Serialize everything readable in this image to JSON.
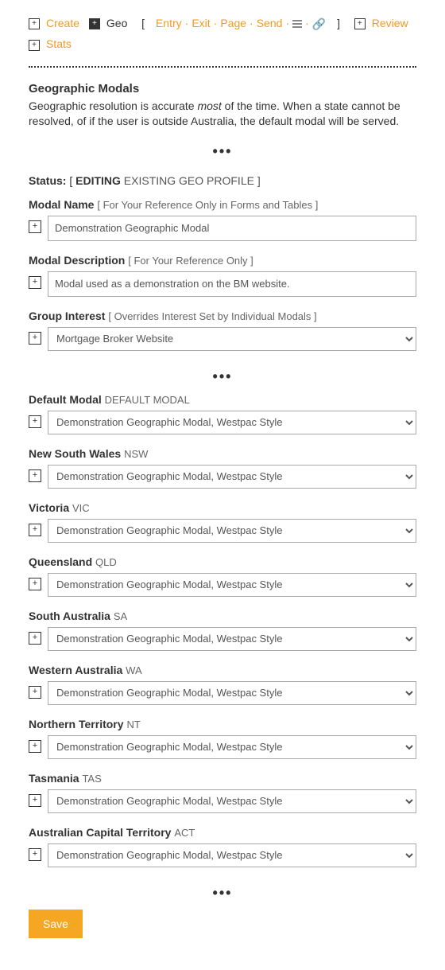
{
  "colors": {
    "accent": "#f29a1f",
    "text": "#333333",
    "muted": "#666666",
    "input_border": "#aaaaaa",
    "save_bg": "#f5a623",
    "save_fg": "#ffffff"
  },
  "topnav": {
    "create": "Create",
    "geo": "Geo",
    "entry": "Entry",
    "exit": "Exit",
    "page": "Page",
    "send": "Send",
    "review": "Review",
    "stats": "Stats"
  },
  "header": {
    "title": "Geographic Modals",
    "desc_pre": "Geographic resolution is accurate ",
    "desc_em": "most",
    "desc_post": " of the time. When a state cannot be resolved, of if the user is outside Australia, the default modal will be served."
  },
  "status": {
    "label": "Status:",
    "open_bracket": "[ ",
    "editing": "EDITING",
    "rest": " EXISTING GEO PROFILE ]"
  },
  "fields": {
    "modal_name": {
      "label": "Modal Name",
      "hint": "[ For Your Reference Only in Forms and Tables ]",
      "value": "Demonstration Geographic Modal"
    },
    "modal_description": {
      "label": "Modal Description",
      "hint": "[ For Your Reference Only ]",
      "value": "Modal used as a demonstration on the BM website."
    },
    "group_interest": {
      "label": "Group Interest",
      "hint": "[ Overrides Interest Set by Individual Modals ]",
      "value": "Mortgage Broker Website"
    }
  },
  "regions": [
    {
      "label": "Default Modal",
      "code": "DEFAULT MODAL",
      "value": "Demonstration Geographic Modal, Westpac Style"
    },
    {
      "label": "New South Wales",
      "code": "NSW",
      "value": "Demonstration Geographic Modal, Westpac Style"
    },
    {
      "label": "Victoria",
      "code": "VIC",
      "value": "Demonstration Geographic Modal, Westpac Style"
    },
    {
      "label": "Queensland",
      "code": "QLD",
      "value": "Demonstration Geographic Modal, Westpac Style"
    },
    {
      "label": "South Australia",
      "code": "SA",
      "value": "Demonstration Geographic Modal, Westpac Style"
    },
    {
      "label": "Western Australia",
      "code": "WA",
      "value": "Demonstration Geographic Modal, Westpac Style"
    },
    {
      "label": "Northern Territory",
      "code": "NT",
      "value": "Demonstration Geographic Modal, Westpac Style"
    },
    {
      "label": "Tasmania",
      "code": "TAS",
      "value": "Demonstration Geographic Modal, Westpac Style"
    },
    {
      "label": "Australian Capital Territory",
      "code": "ACT",
      "value": "Demonstration Geographic Modal, Westpac Style"
    }
  ],
  "buttons": {
    "save": "Save"
  },
  "dots": "•••"
}
